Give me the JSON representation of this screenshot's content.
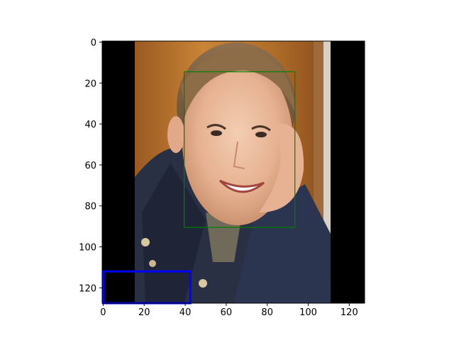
{
  "chart_data": {
    "type": "image",
    "image_size": [
      128,
      128
    ],
    "xlim": [
      -0.5,
      127.5
    ],
    "ylim": [
      127.5,
      -0.5
    ],
    "x_ticks": [
      0,
      20,
      40,
      60,
      80,
      100,
      120
    ],
    "y_ticks": [
      0,
      20,
      40,
      60,
      80,
      100,
      120
    ],
    "grid": false,
    "content_columns": [
      16,
      111
    ],
    "boxes": [
      {
        "color": "#008000",
        "x0": 39.5,
        "y0": 14.5,
        "x1": 93.5,
        "y1": 90.5
      },
      {
        "color": "#0000ff",
        "x0": 0,
        "y0": 112,
        "x1": 42.5,
        "y1": 127.5
      }
    ]
  }
}
